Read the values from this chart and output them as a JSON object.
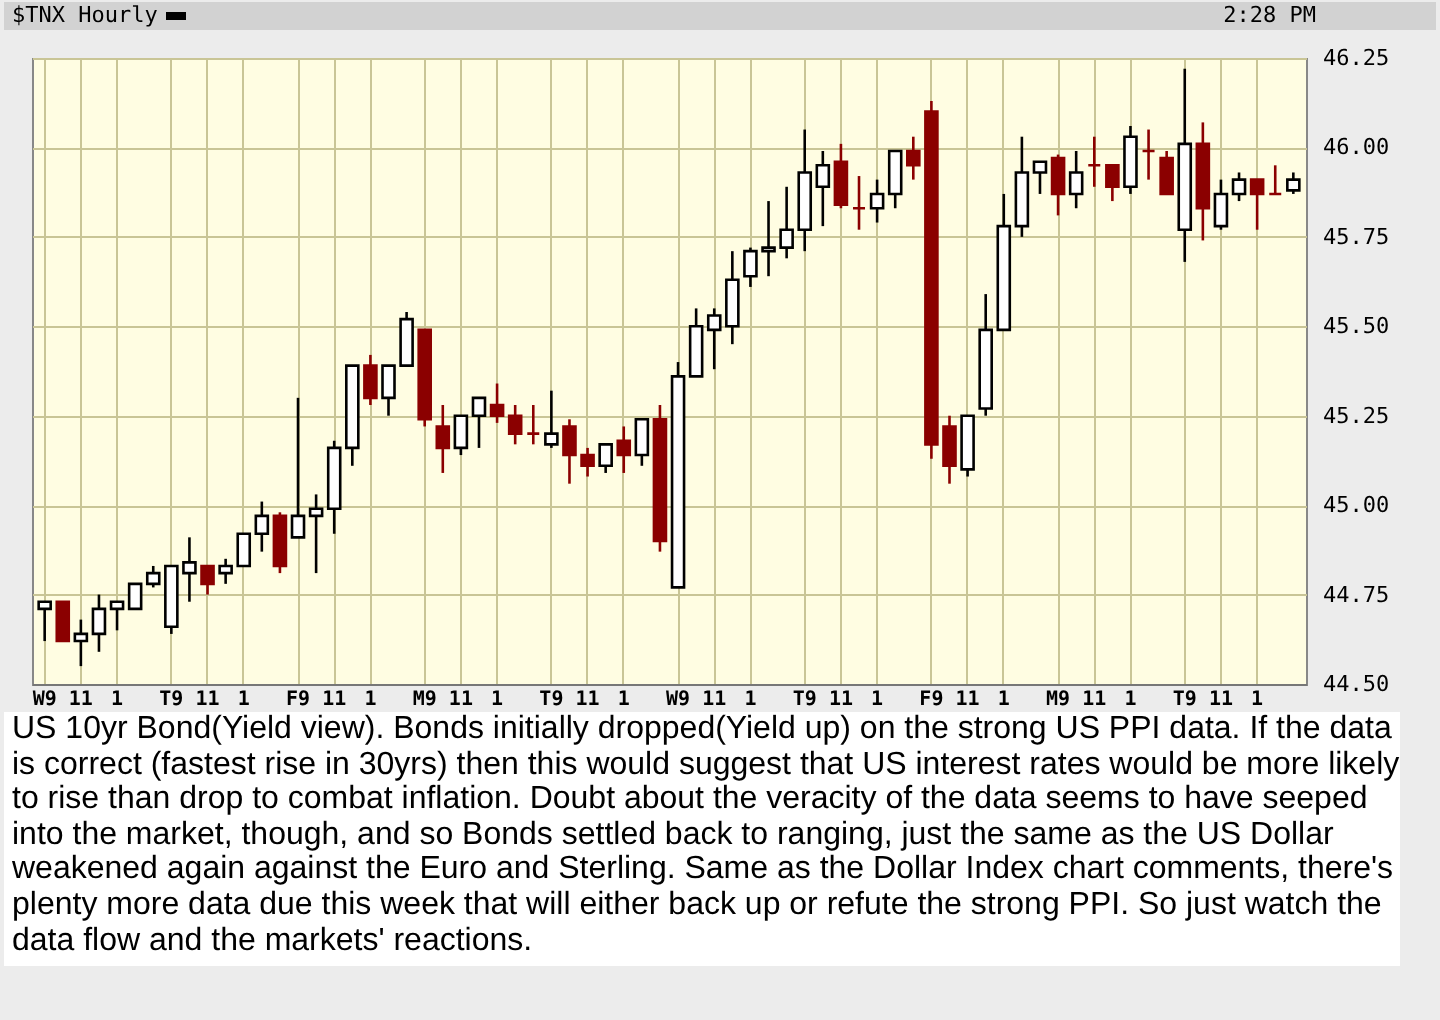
{
  "chart_data": {
    "type": "candlestick",
    "title": "$TNX Hourly",
    "annotations": [
      "2:28 PM",
      "US 10yr Bond(Yield view). Bonds initially dropped(Yield up) on the strong US PPI data. If the data is correct (fastest rise in 30yrs) then this would suggest that US interest rates would be more likely to rise than drop to combat inflation. Doubt about the veracity of the data seems to have seeped into the market, though, and so Bonds settled back to ranging, just the same as the US Dollar weakened again against the Euro and Sterling. Same as the Dollar Index chart comments, there's plenty more data due this week that will either back up or refute the strong PPI. So just watch the data flow and the markets' reactions."
    ],
    "categories": [
      "W9",
      null,
      "11",
      null,
      "1",
      null,
      null,
      "T9",
      null,
      "11",
      null,
      "1",
      null,
      null,
      "F9",
      null,
      "11",
      null,
      "1",
      null,
      null,
      "M9",
      null,
      "11",
      null,
      "1",
      null,
      null,
      "T9",
      null,
      "11",
      null,
      "1",
      null,
      null,
      "W9",
      null,
      "11",
      null,
      "1",
      null,
      null,
      "T9",
      null,
      "11",
      null,
      "1",
      null,
      null,
      "F9",
      null,
      "11",
      null,
      "1",
      null,
      null,
      "M9",
      null,
      "11",
      null,
      "1",
      null,
      null,
      "T9",
      null,
      "11",
      null,
      "1",
      null,
      null
    ],
    "ohlc": [
      [
        44.71,
        44.73,
        44.62,
        44.73
      ],
      [
        44.73,
        44.73,
        44.62,
        44.62
      ],
      [
        44.62,
        44.68,
        44.55,
        44.64
      ],
      [
        44.64,
        44.75,
        44.59,
        44.71
      ],
      [
        44.71,
        44.73,
        44.65,
        44.73
      ],
      [
        44.71,
        44.78,
        44.71,
        44.78
      ],
      [
        44.78,
        44.83,
        44.77,
        44.81
      ],
      [
        44.66,
        44.83,
        44.64,
        44.83
      ],
      [
        44.81,
        44.91,
        44.73,
        44.84
      ],
      [
        44.83,
        44.83,
        44.75,
        44.78
      ],
      [
        44.81,
        44.85,
        44.78,
        44.83
      ],
      [
        44.83,
        44.92,
        44.83,
        44.92
      ],
      [
        44.92,
        45.01,
        44.87,
        44.97
      ],
      [
        44.97,
        44.98,
        44.81,
        44.83
      ],
      [
        44.91,
        45.3,
        44.91,
        44.97
      ],
      [
        44.97,
        45.03,
        44.81,
        44.99
      ],
      [
        44.99,
        45.18,
        44.92,
        45.16
      ],
      [
        45.16,
        45.39,
        45.11,
        45.39
      ],
      [
        45.39,
        45.42,
        45.28,
        45.3
      ],
      [
        45.3,
        45.39,
        45.25,
        45.39
      ],
      [
        45.39,
        45.54,
        45.39,
        45.52
      ],
      [
        45.49,
        45.49,
        45.22,
        45.24
      ],
      [
        45.22,
        45.28,
        45.09,
        45.16
      ],
      [
        45.16,
        45.25,
        45.14,
        45.25
      ],
      [
        45.25,
        45.3,
        45.16,
        45.3
      ],
      [
        45.28,
        45.34,
        45.23,
        45.25
      ],
      [
        45.25,
        45.28,
        45.17,
        45.2
      ],
      [
        45.2,
        45.28,
        45.17,
        45.2
      ],
      [
        45.17,
        45.32,
        45.16,
        45.2
      ],
      [
        45.22,
        45.24,
        45.06,
        45.14
      ],
      [
        45.14,
        45.16,
        45.08,
        45.11
      ],
      [
        45.11,
        45.17,
        45.09,
        45.17
      ],
      [
        45.18,
        45.22,
        45.09,
        45.14
      ],
      [
        45.14,
        45.24,
        45.11,
        45.24
      ],
      [
        45.24,
        45.28,
        44.87,
        44.9
      ],
      [
        44.77,
        45.4,
        44.77,
        45.36
      ],
      [
        45.36,
        45.55,
        45.36,
        45.5
      ],
      [
        45.49,
        45.55,
        45.38,
        45.53
      ],
      [
        45.5,
        45.71,
        45.45,
        45.63
      ],
      [
        45.64,
        45.72,
        45.61,
        45.71
      ],
      [
        45.71,
        45.85,
        45.64,
        45.72
      ],
      [
        45.72,
        45.89,
        45.69,
        45.77
      ],
      [
        45.77,
        46.05,
        45.71,
        45.93
      ],
      [
        45.89,
        45.99,
        45.78,
        45.95
      ],
      [
        45.96,
        46.01,
        45.83,
        45.84
      ],
      [
        45.83,
        45.92,
        45.77,
        45.83
      ],
      [
        45.83,
        45.91,
        45.79,
        45.87
      ],
      [
        45.87,
        45.99,
        45.83,
        45.99
      ],
      [
        45.99,
        46.03,
        45.91,
        45.95
      ],
      [
        46.1,
        46.13,
        45.13,
        45.17
      ],
      [
        45.22,
        45.25,
        45.06,
        45.11
      ],
      [
        45.1,
        45.25,
        45.08,
        45.25
      ],
      [
        45.27,
        45.59,
        45.25,
        45.49
      ],
      [
        45.49,
        45.87,
        45.49,
        45.78
      ],
      [
        45.78,
        46.03,
        45.75,
        45.93
      ],
      [
        45.93,
        45.96,
        45.87,
        45.96
      ],
      [
        45.97,
        45.98,
        45.81,
        45.87
      ],
      [
        45.87,
        45.99,
        45.83,
        45.93
      ],
      [
        45.95,
        46.03,
        45.89,
        45.95
      ],
      [
        45.95,
        45.95,
        45.85,
        45.89
      ],
      [
        45.89,
        46.06,
        45.87,
        46.03
      ],
      [
        45.99,
        46.05,
        45.91,
        45.99
      ],
      [
        45.97,
        45.99,
        45.87,
        45.87
      ],
      [
        45.77,
        46.22,
        45.68,
        46.01
      ],
      [
        46.01,
        46.07,
        45.74,
        45.83
      ],
      [
        45.78,
        45.91,
        45.77,
        45.87
      ],
      [
        45.87,
        45.93,
        45.85,
        45.91
      ],
      [
        45.91,
        45.91,
        45.77,
        45.87
      ],
      [
        45.87,
        45.95,
        45.87,
        45.87
      ],
      [
        45.88,
        45.93,
        45.87,
        45.91
      ]
    ],
    "colors": [
      "#ffffff",
      "#8b0000",
      "#ffffff",
      "#ffffff",
      "#ffffff",
      "#ffffff",
      "#ffffff",
      "#ffffff",
      "#ffffff",
      "#8b0000",
      "#ffffff",
      "#ffffff",
      "#ffffff",
      "#8b0000",
      "#ffffff",
      "#ffffff",
      "#ffffff",
      "#ffffff",
      "#8b0000",
      "#ffffff",
      "#ffffff",
      "#8b0000",
      "#8b0000",
      "#ffffff",
      "#ffffff",
      "#8b0000",
      "#8b0000",
      "#8b0000",
      "#ffffff",
      "#8b0000",
      "#8b0000",
      "#ffffff",
      "#8b0000",
      "#ffffff",
      "#8b0000",
      "#ffffff",
      "#ffffff",
      "#ffffff",
      "#ffffff",
      "#ffffff",
      "#ffffff",
      "#ffffff",
      "#ffffff",
      "#ffffff",
      "#8b0000",
      "#8b0000",
      "#ffffff",
      "#ffffff",
      "#8b0000",
      "#8b0000",
      "#8b0000",
      "#ffffff",
      "#ffffff",
      "#ffffff",
      "#ffffff",
      "#ffffff",
      "#8b0000",
      "#ffffff",
      "#8b0000",
      "#8b0000",
      "#ffffff",
      "#8b0000",
      "#8b0000",
      "#ffffff",
      "#8b0000",
      "#ffffff",
      "#ffffff",
      "#8b0000",
      "#8b0000",
      "#ffffff"
    ],
    "ylim": [
      44.5,
      46.25
    ],
    "yticks": [
      {
        "value": 44.5,
        "label": "44.50"
      },
      {
        "value": 44.75,
        "label": "44.75"
      },
      {
        "value": 45,
        "label": "45.00"
      },
      {
        "value": 45.25,
        "label": "45.25"
      },
      {
        "value": 45.5,
        "label": "45.50"
      },
      {
        "value": 45.75,
        "label": "45.75"
      },
      {
        "value": 46,
        "label": "46.00"
      },
      {
        "value": 46.25,
        "label": "46.25"
      }
    ],
    "grid": true
  }
}
